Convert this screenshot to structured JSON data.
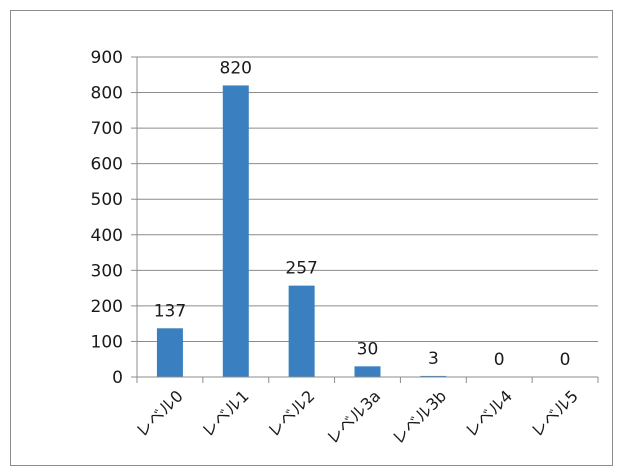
{
  "chart_data": {
    "type": "bar",
    "categories": [
      "レベル0",
      "レベル1",
      "レベル2",
      "レベル3a",
      "レベル3b",
      "レベル4",
      "レベル5"
    ],
    "values": [
      137,
      820,
      257,
      30,
      3,
      0,
      0
    ],
    "data_labels": [
      "137",
      "820",
      "257",
      "30",
      "3",
      "0",
      "0"
    ],
    "title": "",
    "xlabel": "",
    "ylabel": "",
    "ylim": [
      0,
      900
    ],
    "yticks": [
      0,
      100,
      200,
      300,
      400,
      500,
      600,
      700,
      800,
      900
    ],
    "grid": true,
    "legend": "none",
    "bar_color": "#3a80c0",
    "grid_color": "#8c8c8c"
  }
}
